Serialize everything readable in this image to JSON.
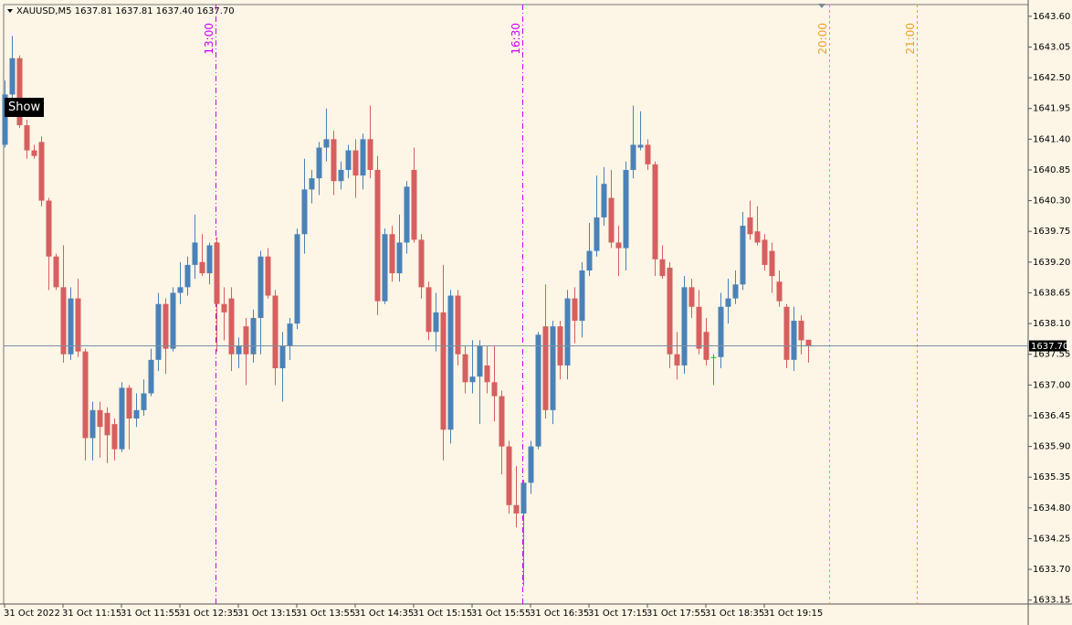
{
  "chart_data": {
    "type": "candlestick",
    "header": "XAUUSD,M5  1637.81 1637.81 1637.40 1637.70",
    "button": "Show",
    "up_color": "#4a82b8",
    "down_color": "#d65f5f",
    "doji_color": "#00cc00",
    "background": "#fdf5e6",
    "categories": [
      "31 Oct 2022",
      null,
      null,
      null,
      null,
      null,
      null,
      null,
      "31 Oct 11:15",
      null,
      null,
      null,
      null,
      null,
      null,
      null,
      "31 Oct 11:55",
      null,
      null,
      null,
      null,
      null,
      null,
      null,
      "31 Oct 12:35",
      null,
      null,
      null,
      null,
      null,
      null,
      null,
      "31 Oct 13:15",
      null,
      null,
      null,
      null,
      null,
      null,
      null,
      "31 Oct 13:55",
      null,
      null,
      null,
      null,
      null,
      null,
      null,
      "31 Oct 14:35",
      null,
      null,
      null,
      null,
      null,
      null,
      null,
      "31 Oct 15:15",
      null,
      null,
      null,
      null,
      null,
      null,
      null,
      "31 Oct 15:55",
      null,
      null,
      null,
      null,
      null,
      null,
      null,
      "31 Oct 16:35",
      null,
      null,
      null,
      null,
      null,
      null,
      null,
      "31 Oct 17:15",
      null,
      null,
      null,
      null,
      null,
      null,
      null,
      "31 Oct 17:55",
      null,
      null,
      null,
      null,
      null,
      null,
      null,
      "31 Oct 18:35",
      null,
      null,
      null,
      null,
      null,
      null,
      null,
      "31 Oct 19:15",
      null,
      null,
      null,
      null,
      null,
      null
    ],
    "open": [
      1641.3,
      1642.2,
      1642.85,
      1641.65,
      1641.2,
      1641.35,
      1640.3,
      1639.3,
      1638.75,
      1637.55,
      1638.55,
      1637.6,
      1636.05,
      1636.55,
      1636.5,
      1636.3,
      1635.85,
      1636.95,
      1636.4,
      1636.55,
      1636.85,
      1637.45,
      1638.45,
      1637.65,
      1638.65,
      1638.75,
      1639.15,
      1639.2,
      1639.0,
      1639.55,
      1638.45,
      1638.55,
      1637.55,
      1638.05,
      1637.55,
      1638.2,
      1639.3,
      1638.6,
      1637.3,
      1637.7,
      1638.1,
      1639.7,
      1640.5,
      1640.7,
      1641.25,
      1641.4,
      1640.65,
      1640.85,
      1641.2,
      1640.75,
      1641.4,
      1640.85,
      1638.5,
      1639.7,
      1639.0,
      1639.55,
      1640.85,
      1639.6,
      1638.75,
      1637.95,
      1638.3,
      1636.2,
      1638.6,
      1637.55,
      1637.05,
      1637.15,
      1637.35,
      1637.05,
      1636.8,
      1635.9,
      1634.85,
      1634.7,
      1635.25,
      1635.9,
      1638.05,
      1636.55,
      1638.05,
      1637.35,
      1638.55,
      1638.15,
      1639.05,
      1639.4,
      1640.0,
      1640.35,
      1639.55,
      1639.45,
      1640.85,
      1641.25,
      1641.3,
      1640.95,
      1639.25,
      1639.1,
      1637.55,
      1637.35,
      1638.75,
      1638.4,
      1637.95,
      1637.5,
      1637.5,
      1638.4,
      1638.55,
      1638.8,
      1640.0,
      1639.75,
      1639.6,
      1639.4,
      1638.85,
      1638.4,
      1637.45,
      1638.15,
      1637.81
    ],
    "high": [
      1642.45,
      1643.25,
      1642.9,
      1641.75,
      1641.3,
      1641.45,
      1640.35,
      1639.35,
      1639.5,
      1638.75,
      1638.9,
      1637.65,
      1636.7,
      1636.7,
      1636.6,
      1636.4,
      1637.05,
      1637.0,
      1636.85,
      1637.1,
      1637.65,
      1638.65,
      1638.55,
      1638.75,
      1639.2,
      1639.3,
      1640.05,
      1639.7,
      1639.55,
      1639.65,
      1638.75,
      1638.75,
      1637.85,
      1638.2,
      1638.35,
      1639.4,
      1639.45,
      1638.7,
      1637.95,
      1638.2,
      1639.8,
      1641.05,
      1640.85,
      1641.35,
      1641.95,
      1641.55,
      1641.0,
      1641.3,
      1641.4,
      1641.5,
      1642.0,
      1641.1,
      1639.8,
      1639.85,
      1640.05,
      1640.65,
      1641.25,
      1639.7,
      1638.85,
      1638.65,
      1639.15,
      1638.7,
      1638.7,
      1637.7,
      1637.8,
      1637.8,
      1637.7,
      1637.7,
      1636.9,
      1636.0,
      1635.55,
      1635.3,
      1636.0,
      1637.95,
      1638.8,
      1638.15,
      1638.15,
      1638.7,
      1638.75,
      1639.2,
      1639.9,
      1640.75,
      1640.9,
      1640.85,
      1639.85,
      1641.0,
      1642.0,
      1641.9,
      1641.4,
      1641.0,
      1639.5,
      1639.2,
      1637.95,
      1638.95,
      1638.9,
      1638.7,
      1638.2,
      1637.55,
      1638.65,
      1638.9,
      1639.05,
      1640.1,
      1640.3,
      1640.2,
      1639.7,
      1639.55,
      1639.05,
      1638.45,
      1638.4,
      1638.25,
      1637.81
    ],
    "low": [
      1641.25,
      1642.1,
      1641.6,
      1641.05,
      1641.05,
      1640.2,
      1638.7,
      1638.7,
      1637.4,
      1637.45,
      1637.5,
      1635.65,
      1635.65,
      1635.7,
      1635.6,
      1635.65,
      1635.8,
      1635.85,
      1636.25,
      1636.45,
      1636.8,
      1637.25,
      1637.2,
      1637.6,
      1638.45,
      1638.6,
      1638.9,
      1638.95,
      1638.8,
      1637.6,
      1637.8,
      1637.25,
      1637.3,
      1637.0,
      1637.4,
      1637.55,
      1638.55,
      1637.0,
      1636.7,
      1637.45,
      1638.0,
      1639.35,
      1640.25,
      1640.4,
      1641.0,
      1640.4,
      1640.5,
      1640.7,
      1640.35,
      1640.5,
      1640.7,
      1638.25,
      1638.45,
      1638.85,
      1638.85,
      1639.35,
      1639.55,
      1638.55,
      1637.8,
      1637.6,
      1635.65,
      1635.95,
      1637.35,
      1636.85,
      1636.85,
      1636.3,
      1636.85,
      1636.35,
      1635.4,
      1634.7,
      1634.45,
      1633.4,
      1635.05,
      1635.85,
      1636.4,
      1636.3,
      1637.1,
      1637.1,
      1637.75,
      1637.85,
      1638.95,
      1639.3,
      1639.85,
      1639.45,
      1638.95,
      1639.05,
      1640.7,
      1641.2,
      1640.85,
      1638.95,
      1638.9,
      1637.3,
      1637.1,
      1637.2,
      1638.2,
      1637.55,
      1637.35,
      1637.0,
      1637.3,
      1638.1,
      1638.45,
      1638.7,
      1639.6,
      1639.5,
      1639.05,
      1638.65,
      1638.4,
      1637.3,
      1637.25,
      1637.55,
      1637.4
    ],
    "close": [
      1642.2,
      1642.85,
      1641.65,
      1641.2,
      1641.1,
      1640.3,
      1639.3,
      1638.75,
      1637.55,
      1638.55,
      1637.6,
      1636.05,
      1636.55,
      1636.25,
      1636.1,
      1635.85,
      1636.95,
      1636.4,
      1636.55,
      1636.85,
      1637.45,
      1638.45,
      1637.65,
      1638.65,
      1638.75,
      1639.15,
      1639.55,
      1639.0,
      1639.5,
      1638.45,
      1638.3,
      1637.55,
      1637.7,
      1637.55,
      1638.2,
      1639.3,
      1638.6,
      1637.3,
      1637.7,
      1638.1,
      1639.7,
      1640.5,
      1640.7,
      1641.25,
      1641.4,
      1640.65,
      1640.85,
      1641.2,
      1640.75,
      1641.4,
      1640.85,
      1638.5,
      1639.7,
      1639.0,
      1639.55,
      1640.55,
      1639.6,
      1638.75,
      1637.95,
      1638.3,
      1636.2,
      1638.6,
      1637.55,
      1637.05,
      1637.15,
      1637.7,
      1637.05,
      1636.8,
      1635.9,
      1634.85,
      1634.7,
      1635.25,
      1635.9,
      1637.9,
      1636.55,
      1638.05,
      1637.35,
      1638.55,
      1638.15,
      1639.05,
      1639.4,
      1640.0,
      1640.6,
      1639.55,
      1639.45,
      1640.85,
      1641.3,
      1641.3,
      1640.95,
      1639.25,
      1638.95,
      1637.55,
      1637.35,
      1638.75,
      1638.4,
      1637.65,
      1637.45,
      1637.5,
      1638.4,
      1638.55,
      1638.8,
      1639.85,
      1639.7,
      1639.55,
      1639.15,
      1638.95,
      1638.5,
      1637.45,
      1638.15,
      1637.8,
      1637.7
    ],
    "ylim": [
      1633.08,
      1643.81
    ],
    "yticks": [
      {
        "value": 1643.6,
        "label": "1643.60"
      },
      {
        "value": 1643.05,
        "label": "1643.05"
      },
      {
        "value": 1642.5,
        "label": "1642.50"
      },
      {
        "value": 1641.95,
        "label": "1641.95"
      },
      {
        "value": 1641.4,
        "label": "1641.40"
      },
      {
        "value": 1640.85,
        "label": "1640.85"
      },
      {
        "value": 1640.3,
        "label": "1640.30"
      },
      {
        "value": 1639.75,
        "label": "1639.75"
      },
      {
        "value": 1639.2,
        "label": "1639.20"
      },
      {
        "value": 1638.65,
        "label": "1638.65"
      },
      {
        "value": 1638.1,
        "label": "1638.10"
      },
      {
        "value": 1637.55,
        "label": "1637.55"
      },
      {
        "value": 1637,
        "label": "1637.00"
      },
      {
        "value": 1636.45,
        "label": "1636.45"
      },
      {
        "value": 1635.9,
        "label": "1635.90"
      },
      {
        "value": 1635.35,
        "label": "1635.35"
      },
      {
        "value": 1634.8,
        "label": "1634.80"
      },
      {
        "value": 1634.25,
        "label": "1634.25"
      },
      {
        "value": 1633.7,
        "label": "1633.70"
      },
      {
        "value": 1633.15,
        "label": "1633.15"
      }
    ],
    "last_price": {
      "value": 1637.7,
      "label": "1637.70"
    },
    "vlines": [
      {
        "label": "13:00",
        "index": 29,
        "color": "#cc00ff"
      },
      {
        "label": "16:30",
        "index": 71,
        "color": "#cc00ff"
      },
      {
        "label": "20:00",
        "index": 113,
        "color": "#f0a020"
      },
      {
        "label": "21:00",
        "index": 125,
        "color": "#f0a020"
      }
    ]
  }
}
